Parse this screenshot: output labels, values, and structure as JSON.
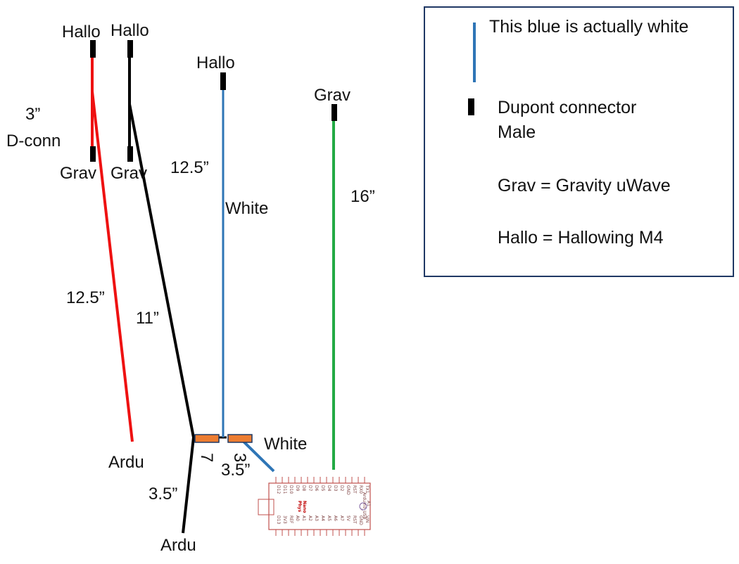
{
  "colors": {
    "red_wire": "#ee1111",
    "black_wire": "#000000",
    "white_wire_drawn_blue": "#2e75b6",
    "green_wire": "#22aa44",
    "connector": "#000000",
    "heatshrink": "#ed7d31",
    "board_outline": "#c0504d"
  },
  "labels": {
    "hallo_red": "Hallo",
    "hallo_black": "Hallo",
    "hallo_white": "Hallo",
    "grav_green": "Grav",
    "grav_red": "Grav",
    "grav_black": "Grav",
    "len_3": "3”",
    "d_conn": "D-conn",
    "len_red": "12.5”",
    "len_black": "11”",
    "len_white": "12.5”",
    "white_mid": "White",
    "len_green": "16”",
    "ardu_red": "Ardu",
    "ardu_black": "Ardu",
    "len_black_tail": "3.5”",
    "len_white_tail": "3.5”",
    "white_tail": "White",
    "sleeve_7": "7",
    "sleeve_3": "3"
  },
  "legend": {
    "blue_note": "This blue is actually white",
    "connector_line1": "Dupont connector",
    "connector_line2": "Male",
    "grav_def": "Grav = Gravity uWave",
    "hallo_def": "Hallo = Hallowing M4"
  },
  "board": {
    "top_pins": [
      "TX1",
      "RX0",
      "RST",
      "GND",
      "D2",
      "D3",
      "D4",
      "D5",
      "D6",
      "D7",
      "D8",
      "D9",
      "D10",
      "D11",
      "D12"
    ],
    "bottom_pins": [
      "VIN",
      "GND",
      "RST",
      "5V",
      "A7",
      "A6",
      "A5",
      "A4",
      "A3",
      "A2",
      "A1",
      "A0",
      "REF",
      "3V3",
      "D13"
    ],
    "name": "Nano",
    "sub": "Phys",
    "usb": "Arduino_USB",
    "ref": "A1"
  }
}
